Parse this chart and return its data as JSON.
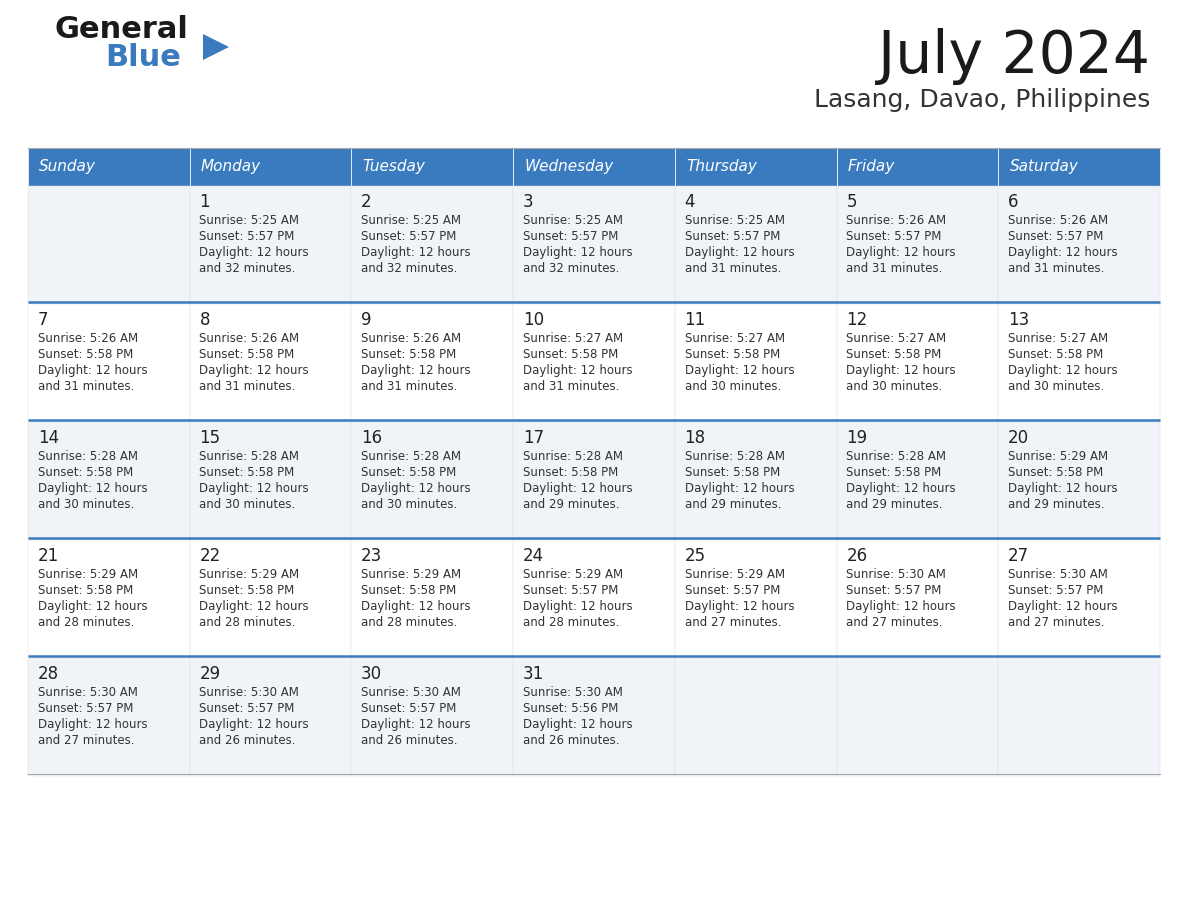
{
  "title": "July 2024",
  "subtitle": "Lasang, Davao, Philippines",
  "header_color": "#3a7bbf",
  "header_text_color": "#ffffff",
  "bg_color": "#ffffff",
  "row_even_color": "#f0f4f8",
  "row_odd_color": "#ffffff",
  "separator_color": "#3a7bbf",
  "border_color": "#cccccc",
  "text_color": "#333333",
  "days_of_week": [
    "Sunday",
    "Monday",
    "Tuesday",
    "Wednesday",
    "Thursday",
    "Friday",
    "Saturday"
  ],
  "weeks": [
    [
      {
        "day": "",
        "sunrise": "",
        "sunset": "",
        "daylight": ""
      },
      {
        "day": "1",
        "sunrise": "5:25 AM",
        "sunset": "5:57 PM",
        "daylight": "12 hours and 32 minutes."
      },
      {
        "day": "2",
        "sunrise": "5:25 AM",
        "sunset": "5:57 PM",
        "daylight": "12 hours and 32 minutes."
      },
      {
        "day": "3",
        "sunrise": "5:25 AM",
        "sunset": "5:57 PM",
        "daylight": "12 hours and 32 minutes."
      },
      {
        "day": "4",
        "sunrise": "5:25 AM",
        "sunset": "5:57 PM",
        "daylight": "12 hours and 31 minutes."
      },
      {
        "day": "5",
        "sunrise": "5:26 AM",
        "sunset": "5:57 PM",
        "daylight": "12 hours and 31 minutes."
      },
      {
        "day": "6",
        "sunrise": "5:26 AM",
        "sunset": "5:57 PM",
        "daylight": "12 hours and 31 minutes."
      }
    ],
    [
      {
        "day": "7",
        "sunrise": "5:26 AM",
        "sunset": "5:58 PM",
        "daylight": "12 hours and 31 minutes."
      },
      {
        "day": "8",
        "sunrise": "5:26 AM",
        "sunset": "5:58 PM",
        "daylight": "12 hours and 31 minutes."
      },
      {
        "day": "9",
        "sunrise": "5:26 AM",
        "sunset": "5:58 PM",
        "daylight": "12 hours and 31 minutes."
      },
      {
        "day": "10",
        "sunrise": "5:27 AM",
        "sunset": "5:58 PM",
        "daylight": "12 hours and 31 minutes."
      },
      {
        "day": "11",
        "sunrise": "5:27 AM",
        "sunset": "5:58 PM",
        "daylight": "12 hours and 30 minutes."
      },
      {
        "day": "12",
        "sunrise": "5:27 AM",
        "sunset": "5:58 PM",
        "daylight": "12 hours and 30 minutes."
      },
      {
        "day": "13",
        "sunrise": "5:27 AM",
        "sunset": "5:58 PM",
        "daylight": "12 hours and 30 minutes."
      }
    ],
    [
      {
        "day": "14",
        "sunrise": "5:28 AM",
        "sunset": "5:58 PM",
        "daylight": "12 hours and 30 minutes."
      },
      {
        "day": "15",
        "sunrise": "5:28 AM",
        "sunset": "5:58 PM",
        "daylight": "12 hours and 30 minutes."
      },
      {
        "day": "16",
        "sunrise": "5:28 AM",
        "sunset": "5:58 PM",
        "daylight": "12 hours and 30 minutes."
      },
      {
        "day": "17",
        "sunrise": "5:28 AM",
        "sunset": "5:58 PM",
        "daylight": "12 hours and 29 minutes."
      },
      {
        "day": "18",
        "sunrise": "5:28 AM",
        "sunset": "5:58 PM",
        "daylight": "12 hours and 29 minutes."
      },
      {
        "day": "19",
        "sunrise": "5:28 AM",
        "sunset": "5:58 PM",
        "daylight": "12 hours and 29 minutes."
      },
      {
        "day": "20",
        "sunrise": "5:29 AM",
        "sunset": "5:58 PM",
        "daylight": "12 hours and 29 minutes."
      }
    ],
    [
      {
        "day": "21",
        "sunrise": "5:29 AM",
        "sunset": "5:58 PM",
        "daylight": "12 hours and 28 minutes."
      },
      {
        "day": "22",
        "sunrise": "5:29 AM",
        "sunset": "5:58 PM",
        "daylight": "12 hours and 28 minutes."
      },
      {
        "day": "23",
        "sunrise": "5:29 AM",
        "sunset": "5:58 PM",
        "daylight": "12 hours and 28 minutes."
      },
      {
        "day": "24",
        "sunrise": "5:29 AM",
        "sunset": "5:57 PM",
        "daylight": "12 hours and 28 minutes."
      },
      {
        "day": "25",
        "sunrise": "5:29 AM",
        "sunset": "5:57 PM",
        "daylight": "12 hours and 27 minutes."
      },
      {
        "day": "26",
        "sunrise": "5:30 AM",
        "sunset": "5:57 PM",
        "daylight": "12 hours and 27 minutes."
      },
      {
        "day": "27",
        "sunrise": "5:30 AM",
        "sunset": "5:57 PM",
        "daylight": "12 hours and 27 minutes."
      }
    ],
    [
      {
        "day": "28",
        "sunrise": "5:30 AM",
        "sunset": "5:57 PM",
        "daylight": "12 hours and 27 minutes."
      },
      {
        "day": "29",
        "sunrise": "5:30 AM",
        "sunset": "5:57 PM",
        "daylight": "12 hours and 26 minutes."
      },
      {
        "day": "30",
        "sunrise": "5:30 AM",
        "sunset": "5:57 PM",
        "daylight": "12 hours and 26 minutes."
      },
      {
        "day": "31",
        "sunrise": "5:30 AM",
        "sunset": "5:56 PM",
        "daylight": "12 hours and 26 minutes."
      },
      {
        "day": "",
        "sunrise": "",
        "sunset": "",
        "daylight": ""
      },
      {
        "day": "",
        "sunrise": "",
        "sunset": "",
        "daylight": ""
      },
      {
        "day": "",
        "sunrise": "",
        "sunset": "",
        "daylight": ""
      }
    ]
  ],
  "logo_general_color": "#1a1a1a",
  "logo_blue_color": "#3a7bbf",
  "logo_triangle_color": "#3a7bbf",
  "title_fontsize": 42,
  "subtitle_fontsize": 18,
  "header_fontsize": 11,
  "day_number_fontsize": 12,
  "cell_text_fontsize": 8.5
}
